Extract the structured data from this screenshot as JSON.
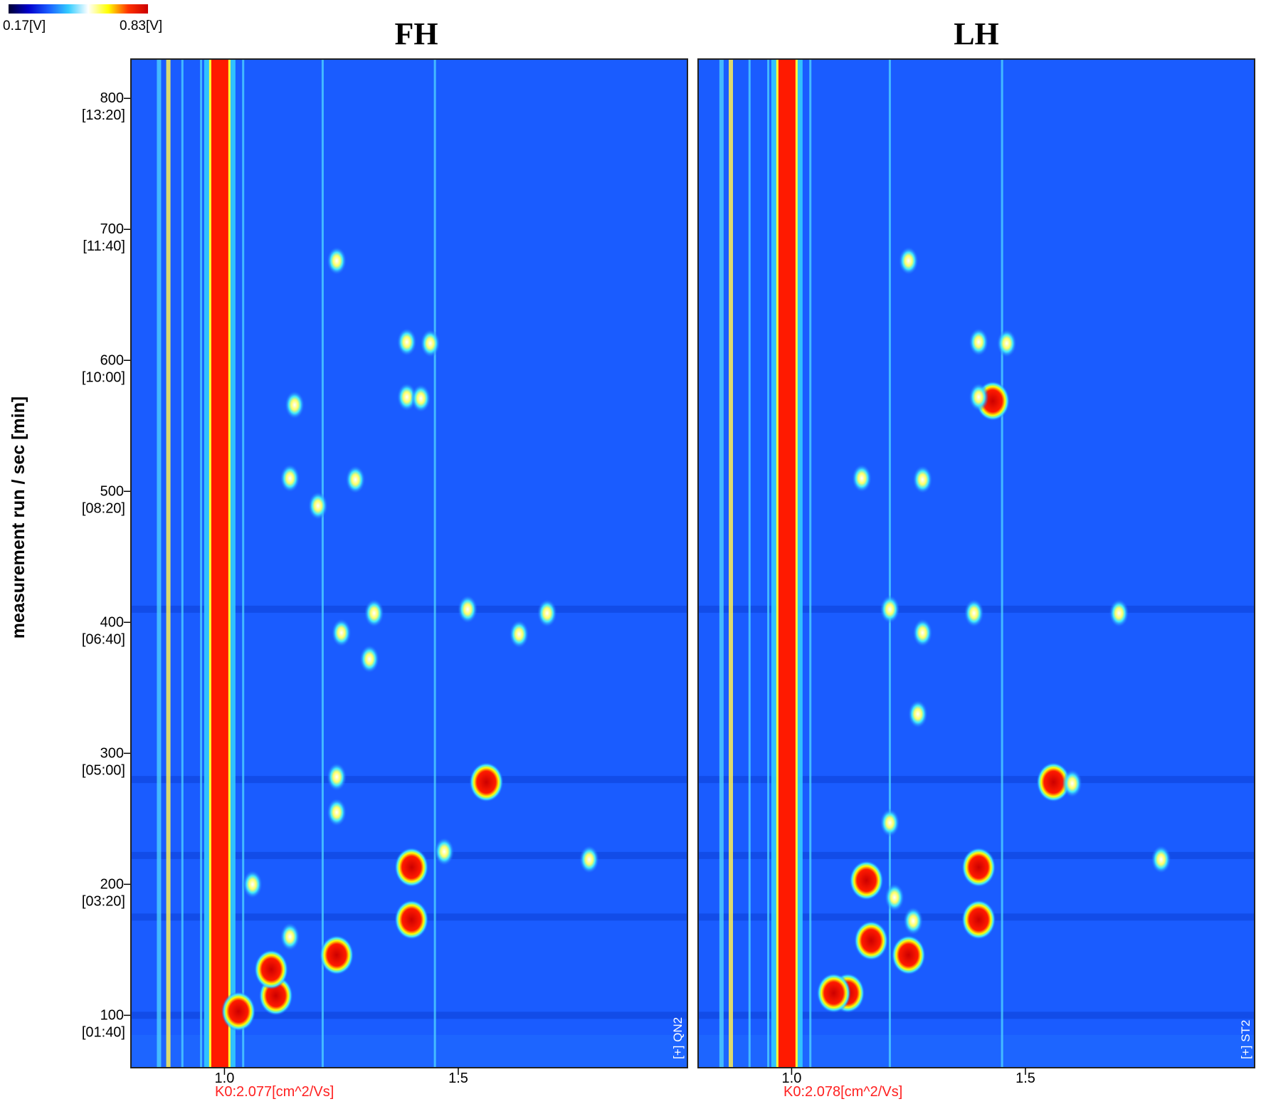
{
  "colorbar": {
    "min_label": "0.17[V]",
    "max_label": "0.83[V]",
    "colors": [
      "#000033",
      "#0000cc",
      "#1a5cff",
      "#33ccff",
      "#ffffff",
      "#ffff00",
      "#ff3300",
      "#cc0000"
    ]
  },
  "chart_data": {
    "type": "heatmap",
    "ylabel": "measurement run / sec [min]",
    "y_range": [
      60,
      830
    ],
    "x_range": [
      0.8,
      1.99
    ],
    "y_ticks": [
      {
        "value": 800,
        "label": "800",
        "sub": "[13:20]"
      },
      {
        "value": 700,
        "label": "700",
        "sub": "[11:40]"
      },
      {
        "value": 600,
        "label": "600",
        "sub": "[10:00]"
      },
      {
        "value": 500,
        "label": "500",
        "sub": "[08:20]"
      },
      {
        "value": 400,
        "label": "400",
        "sub": "[06:40]"
      },
      {
        "value": 300,
        "label": "300",
        "sub": "[05:00]"
      },
      {
        "value": 200,
        "label": "200",
        "sub": "[03:20]"
      },
      {
        "value": 100,
        "label": "100",
        "sub": "[01:40]"
      }
    ],
    "x_ticks": [
      {
        "value": 1.0,
        "label": "1.0"
      },
      {
        "value": 1.5,
        "label": "1.5"
      }
    ],
    "background_color": "#1a5cff",
    "panels": [
      {
        "title": "FH",
        "k0_label": "K0:2.077[cm^2/Vs]",
        "sample_tag": "[+] QN2",
        "rip_x": 0.99,
        "reference_lines": [
          0.86,
          0.88,
          0.91,
          0.95,
          1.04,
          1.21,
          1.45
        ],
        "spots": [
          {
            "x": 1.56,
            "y": 278,
            "level": "high"
          },
          {
            "x": 1.4,
            "y": 213,
            "level": "high"
          },
          {
            "x": 1.4,
            "y": 173,
            "level": "high"
          },
          {
            "x": 1.24,
            "y": 146,
            "level": "high"
          },
          {
            "x": 1.11,
            "y": 115,
            "level": "high"
          },
          {
            "x": 1.1,
            "y": 135,
            "level": "high"
          },
          {
            "x": 1.03,
            "y": 103,
            "level": "high"
          },
          {
            "x": 1.78,
            "y": 219,
            "level": "medium"
          },
          {
            "x": 1.47,
            "y": 225,
            "level": "medium"
          },
          {
            "x": 1.24,
            "y": 676,
            "level": "medium"
          },
          {
            "x": 1.39,
            "y": 614,
            "level": "medium"
          },
          {
            "x": 1.44,
            "y": 613,
            "level": "medium"
          },
          {
            "x": 1.39,
            "y": 572,
            "level": "medium"
          },
          {
            "x": 1.42,
            "y": 571,
            "level": "medium"
          },
          {
            "x": 1.15,
            "y": 566,
            "level": "medium"
          },
          {
            "x": 1.14,
            "y": 510,
            "level": "medium"
          },
          {
            "x": 1.28,
            "y": 509,
            "level": "medium"
          },
          {
            "x": 1.2,
            "y": 489,
            "level": "medium"
          },
          {
            "x": 1.32,
            "y": 407,
            "level": "medium"
          },
          {
            "x": 1.52,
            "y": 410,
            "level": "medium"
          },
          {
            "x": 1.69,
            "y": 407,
            "level": "medium"
          },
          {
            "x": 1.63,
            "y": 391,
            "level": "medium"
          },
          {
            "x": 1.25,
            "y": 392,
            "level": "medium"
          },
          {
            "x": 1.31,
            "y": 372,
            "level": "medium"
          },
          {
            "x": 1.24,
            "y": 282,
            "level": "medium"
          },
          {
            "x": 1.24,
            "y": 255,
            "level": "medium"
          },
          {
            "x": 1.14,
            "y": 160,
            "level": "medium"
          },
          {
            "x": 1.06,
            "y": 200,
            "level": "medium"
          }
        ]
      },
      {
        "title": "LH",
        "k0_label": "K0:2.078[cm^2/Vs]",
        "sample_tag": "[+] ST2",
        "rip_x": 0.99,
        "reference_lines": [
          0.85,
          0.87,
          0.91,
          0.95,
          1.04,
          1.21,
          1.45
        ],
        "spots": [
          {
            "x": 1.56,
            "y": 278,
            "level": "high"
          },
          {
            "x": 1.43,
            "y": 569,
            "level": "high"
          },
          {
            "x": 1.4,
            "y": 213,
            "level": "high"
          },
          {
            "x": 1.4,
            "y": 173,
            "level": "high"
          },
          {
            "x": 1.25,
            "y": 146,
            "level": "high"
          },
          {
            "x": 1.16,
            "y": 203,
            "level": "high"
          },
          {
            "x": 1.17,
            "y": 157,
            "level": "high"
          },
          {
            "x": 1.12,
            "y": 117,
            "level": "high"
          },
          {
            "x": 1.09,
            "y": 117,
            "level": "high"
          },
          {
            "x": 1.79,
            "y": 219,
            "level": "medium"
          },
          {
            "x": 1.25,
            "y": 676,
            "level": "medium"
          },
          {
            "x": 1.4,
            "y": 614,
            "level": "medium"
          },
          {
            "x": 1.46,
            "y": 613,
            "level": "medium"
          },
          {
            "x": 1.4,
            "y": 572,
            "level": "medium"
          },
          {
            "x": 1.15,
            "y": 510,
            "level": "medium"
          },
          {
            "x": 1.28,
            "y": 509,
            "level": "medium"
          },
          {
            "x": 1.21,
            "y": 410,
            "level": "medium"
          },
          {
            "x": 1.39,
            "y": 407,
            "level": "medium"
          },
          {
            "x": 1.7,
            "y": 407,
            "level": "medium"
          },
          {
            "x": 1.28,
            "y": 392,
            "level": "medium"
          },
          {
            "x": 1.27,
            "y": 330,
            "level": "medium"
          },
          {
            "x": 1.21,
            "y": 247,
            "level": "medium"
          },
          {
            "x": 1.26,
            "y": 172,
            "level": "medium"
          },
          {
            "x": 1.22,
            "y": 190,
            "level": "medium"
          },
          {
            "x": 1.6,
            "y": 277,
            "level": "medium"
          }
        ]
      }
    ]
  }
}
